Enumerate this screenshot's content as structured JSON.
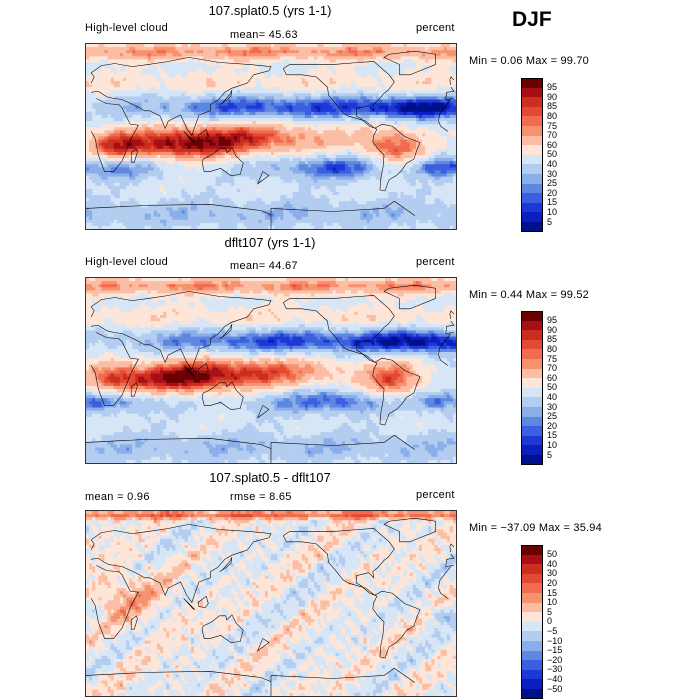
{
  "season": "DJF",
  "chart_data": [
    {
      "type": "heatmap",
      "title": "107.splat0.5 (yrs 1-1)",
      "left_label": "High-level cloud",
      "center_label": "mean=  45.63",
      "right_label": "percent",
      "minmax_label": "Min =    0.06 Max =   99.70",
      "min": 0.06,
      "max": 99.7,
      "mean": 45.63,
      "levels": [
        "95",
        "90",
        "85",
        "80",
        "75",
        "70",
        "60",
        "50",
        "40",
        "30",
        "25",
        "20",
        "15",
        "10",
        "5"
      ],
      "colors": [
        "#6b0000",
        "#a50f15",
        "#cb2d1f",
        "#e24a33",
        "#f06b4f",
        "#f7926f",
        "#fbbea5",
        "#fde5d8",
        "#d6e6f7",
        "#b3cdf0",
        "#8aaeea",
        "#5d87e0",
        "#3a5fe0",
        "#1e38d6",
        "#0b1ec0",
        "#000f8a"
      ],
      "pattern": "model"
    },
    {
      "type": "heatmap",
      "title": "dflt107 (yrs 1-1)",
      "left_label": "High-level cloud",
      "center_label": "mean=  44.67",
      "right_label": "percent",
      "minmax_label": "Min =    0.44 Max =   99.52",
      "min": 0.44,
      "max": 99.52,
      "mean": 44.67,
      "levels": [
        "95",
        "90",
        "85",
        "80",
        "75",
        "70",
        "60",
        "50",
        "40",
        "30",
        "25",
        "20",
        "15",
        "10",
        "5"
      ],
      "colors": [
        "#6b0000",
        "#a50f15",
        "#cb2d1f",
        "#e24a33",
        "#f06b4f",
        "#f7926f",
        "#fbbea5",
        "#fde5d8",
        "#d6e6f7",
        "#b3cdf0",
        "#8aaeea",
        "#5d87e0",
        "#3a5fe0",
        "#1e38d6",
        "#0b1ec0",
        "#000f8a"
      ],
      "pattern": "model"
    },
    {
      "type": "heatmap",
      "title": "107.splat0.5 - dflt107",
      "left_label": "mean =    0.96",
      "center_label": "rmse =    8.65",
      "right_label": "percent",
      "minmax_label": "Min = −37.09 Max =   35.94",
      "min": -37.09,
      "max": 35.94,
      "mean": 0.96,
      "rmse": 8.65,
      "levels": [
        "50",
        "40",
        "30",
        "20",
        "15",
        "10",
        "5",
        "0",
        "−5",
        "−10",
        "−15",
        "−20",
        "−30",
        "−40",
        "−50"
      ],
      "colors": [
        "#6b0000",
        "#a50f15",
        "#cb2d1f",
        "#e24a33",
        "#f06b4f",
        "#f7926f",
        "#fbbea5",
        "#fde5d8",
        "#d6e6f7",
        "#b3cdf0",
        "#8aaeea",
        "#5d87e0",
        "#3a5fe0",
        "#1e38d6",
        "#0b1ec0",
        "#000f8a"
      ],
      "pattern": "diff"
    }
  ]
}
